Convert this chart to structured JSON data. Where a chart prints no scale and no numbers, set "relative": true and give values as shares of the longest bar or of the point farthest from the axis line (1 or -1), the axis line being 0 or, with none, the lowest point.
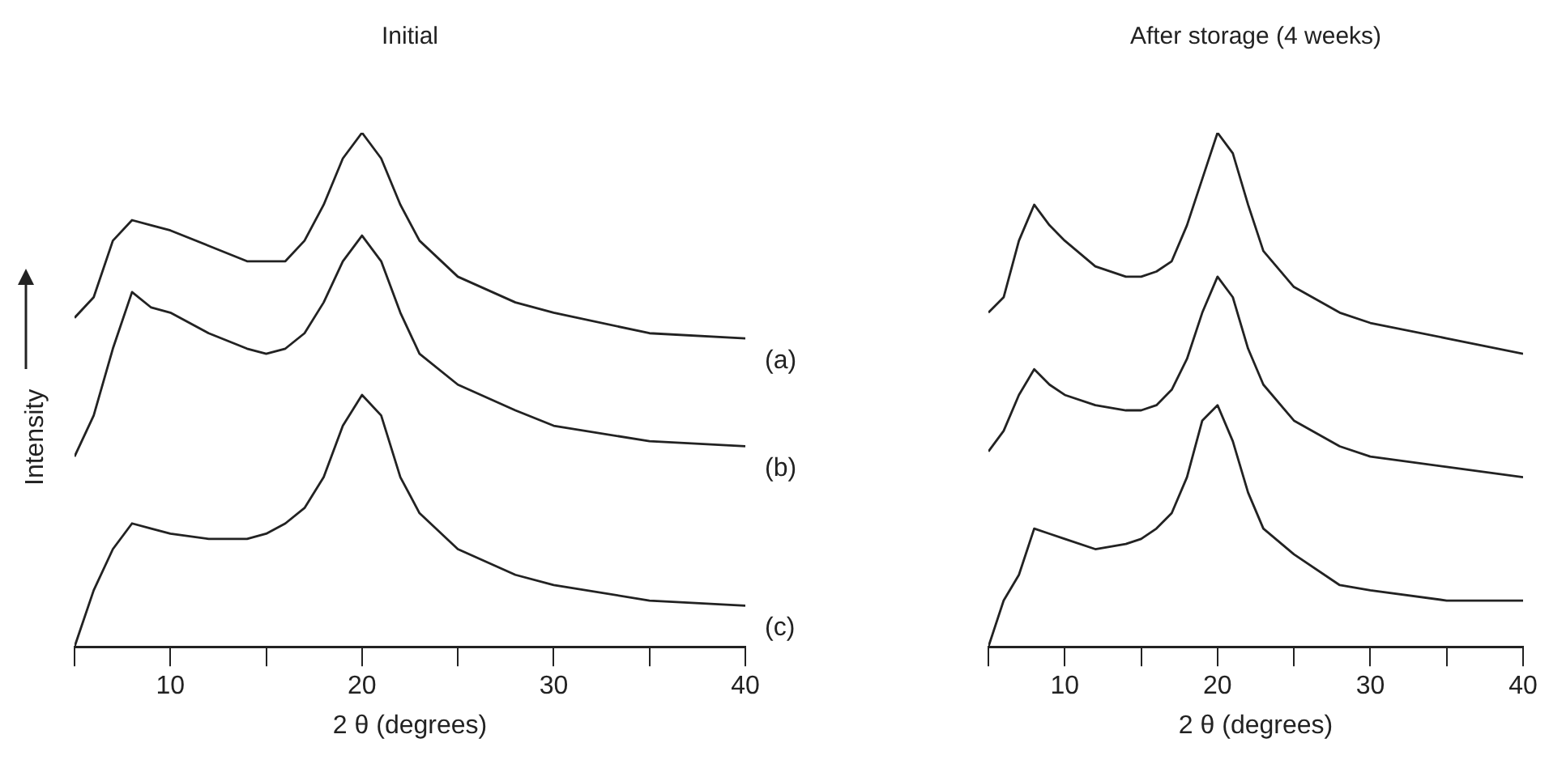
{
  "chart_data": [
    {
      "type": "line",
      "title": "Initial",
      "xlabel": "2 θ (degrees)",
      "ylabel": "Intensity",
      "relative": true,
      "grid": false,
      "legend": false,
      "x": [
        5,
        6,
        7,
        8,
        9,
        10,
        12,
        14,
        15,
        16,
        17,
        18,
        19,
        20,
        21,
        22,
        23,
        25,
        28,
        30,
        35,
        40
      ],
      "xlim": [
        5,
        40
      ],
      "xticks": [
        {
          "value": 5,
          "label": null
        },
        10,
        {
          "value": 15,
          "label": null
        },
        20,
        {
          "value": 25,
          "label": null
        },
        30,
        {
          "value": 35,
          "label": null
        },
        40
      ],
      "series": [
        {
          "name": "(a)",
          "color": "#222222",
          "values": [
            0.64,
            0.68,
            0.79,
            0.83,
            0.82,
            0.81,
            0.78,
            0.75,
            0.75,
            0.75,
            0.79,
            0.86,
            0.95,
            1.0,
            0.95,
            0.86,
            0.79,
            0.72,
            0.67,
            0.65,
            0.61,
            0.6
          ]
        },
        {
          "name": "(b)",
          "color": "#222222",
          "values": [
            0.37,
            0.45,
            0.58,
            0.69,
            0.66,
            0.65,
            0.61,
            0.58,
            0.57,
            0.58,
            0.61,
            0.67,
            0.75,
            0.8,
            0.75,
            0.65,
            0.57,
            0.51,
            0.46,
            0.43,
            0.4,
            0.39
          ]
        },
        {
          "name": "(c)",
          "color": "#222222",
          "values": [
            0.0,
            0.11,
            0.19,
            0.24,
            0.23,
            0.22,
            0.21,
            0.21,
            0.22,
            0.24,
            0.27,
            0.33,
            0.43,
            0.49,
            0.45,
            0.33,
            0.26,
            0.19,
            0.14,
            0.12,
            0.09,
            0.08
          ]
        }
      ]
    },
    {
      "type": "line",
      "title": "After storage (4 weeks)",
      "xlabel": "2 θ (degrees)",
      "relative": true,
      "grid": false,
      "legend": false,
      "x": [
        5,
        6,
        7,
        8,
        9,
        10,
        12,
        14,
        15,
        16,
        17,
        18,
        19,
        20,
        21,
        22,
        23,
        25,
        28,
        30,
        35,
        40
      ],
      "xlim": [
        5,
        40
      ],
      "xticks": [
        {
          "value": 5,
          "label": null
        },
        10,
        {
          "value": 15,
          "label": null
        },
        20,
        {
          "value": 25,
          "label": null
        },
        30,
        {
          "value": 35,
          "label": null
        },
        40
      ],
      "series": [
        {
          "color": "#222222",
          "values": [
            0.65,
            0.68,
            0.79,
            0.86,
            0.82,
            0.79,
            0.74,
            0.72,
            0.72,
            0.73,
            0.75,
            0.82,
            0.91,
            1.0,
            0.96,
            0.86,
            0.77,
            0.7,
            0.65,
            0.63,
            0.6,
            0.57
          ]
        },
        {
          "color": "#222222",
          "values": [
            0.38,
            0.42,
            0.49,
            0.54,
            0.51,
            0.49,
            0.47,
            0.46,
            0.46,
            0.47,
            0.5,
            0.56,
            0.65,
            0.72,
            0.68,
            0.58,
            0.51,
            0.44,
            0.39,
            0.37,
            0.35,
            0.33
          ]
        },
        {
          "color": "#222222",
          "values": [
            0.0,
            0.09,
            0.14,
            0.23,
            0.22,
            0.21,
            0.19,
            0.2,
            0.21,
            0.23,
            0.26,
            0.33,
            0.44,
            0.47,
            0.4,
            0.3,
            0.23,
            0.18,
            0.12,
            0.11,
            0.09,
            0.09
          ]
        }
      ]
    }
  ]
}
